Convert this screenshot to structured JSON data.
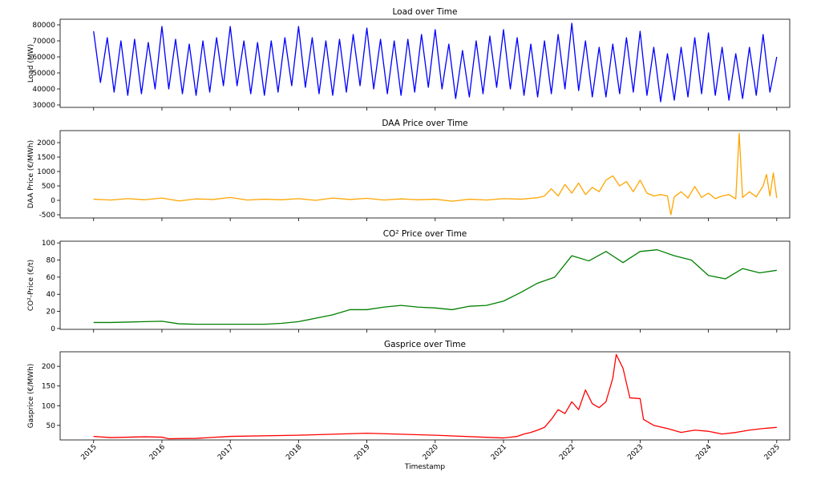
{
  "chart_data": [
    {
      "type": "line",
      "title": "Load over Time",
      "ylabel": "Load (MW)",
      "x": [
        2015,
        2015.1,
        2015.2,
        2015.3,
        2015.4,
        2015.5,
        2015.6,
        2015.7,
        2015.8,
        2015.9,
        2016,
        2016.1,
        2016.2,
        2016.3,
        2016.4,
        2016.5,
        2016.6,
        2016.7,
        2016.8,
        2016.9,
        2017,
        2017.1,
        2017.2,
        2017.3,
        2017.4,
        2017.5,
        2017.6,
        2017.7,
        2017.8,
        2017.9,
        2018,
        2018.1,
        2018.2,
        2018.3,
        2018.4,
        2018.5,
        2018.6,
        2018.7,
        2018.8,
        2018.9,
        2019,
        2019.1,
        2019.2,
        2019.3,
        2019.4,
        2019.5,
        2019.6,
        2019.7,
        2019.8,
        2019.9,
        2020,
        2020.1,
        2020.2,
        2020.3,
        2020.4,
        2020.5,
        2020.6,
        2020.7,
        2020.8,
        2020.9,
        2021,
        2021.1,
        2021.2,
        2021.3,
        2021.4,
        2021.5,
        2021.6,
        2021.7,
        2021.8,
        2021.9,
        2022,
        2022.1,
        2022.2,
        2022.3,
        2022.4,
        2022.5,
        2022.6,
        2022.7,
        2022.8,
        2022.9,
        2023,
        2023.1,
        2023.2,
        2023.3,
        2023.4,
        2023.5,
        2023.6,
        2023.7,
        2023.8,
        2023.9,
        2024,
        2024.1,
        2024.2,
        2024.3,
        2024.4,
        2024.5,
        2024.6,
        2024.7,
        2024.8,
        2024.9,
        2025
      ],
      "series": [
        {
          "color": "#0000ff",
          "values": [
            76000,
            44000,
            72000,
            38000,
            70000,
            36000,
            71000,
            37000,
            69000,
            40000,
            79000,
            40000,
            71000,
            37000,
            68000,
            36000,
            70000,
            38000,
            72000,
            42000,
            79000,
            42000,
            70000,
            37000,
            69000,
            36000,
            70000,
            38000,
            72000,
            42000,
            79000,
            41000,
            72000,
            37000,
            70000,
            36000,
            71000,
            38000,
            74000,
            42000,
            78000,
            40000,
            71000,
            37000,
            70000,
            36000,
            71000,
            38000,
            74000,
            41000,
            77000,
            40000,
            68000,
            34000,
            64000,
            35000,
            70000,
            37000,
            73000,
            41000,
            77000,
            40000,
            72000,
            36000,
            68000,
            35000,
            70000,
            37000,
            74000,
            40000,
            81000,
            39000,
            70000,
            35000,
            66000,
            35000,
            68000,
            37000,
            72000,
            38000,
            76000,
            36000,
            66000,
            32000,
            62000,
            33000,
            66000,
            35000,
            72000,
            37000,
            75000,
            36000,
            66000,
            33000,
            62000,
            34000,
            66000,
            36000,
            74000,
            38000,
            60000
          ]
        }
      ],
      "xlim": [
        2014.51,
        2025.19
      ],
      "xticks": [
        2015,
        2016,
        2017,
        2018,
        2019,
        2020,
        2021,
        2022,
        2023,
        2024,
        2025
      ],
      "ylim": [
        28500,
        83500
      ],
      "yticks": [
        30000,
        40000,
        50000,
        60000,
        70000,
        80000
      ]
    },
    {
      "type": "line",
      "title": "DAA Price over Time",
      "ylabel": "DAA Price (€/MWh)",
      "x": [
        2015,
        2015.25,
        2015.5,
        2015.75,
        2016,
        2016.25,
        2016.5,
        2016.75,
        2017,
        2017.25,
        2017.5,
        2017.75,
        2018,
        2018.25,
        2018.5,
        2018.75,
        2019,
        2019.25,
        2019.5,
        2019.75,
        2020,
        2020.25,
        2020.5,
        2020.75,
        2021,
        2021.25,
        2021.5,
        2021.6,
        2021.7,
        2021.8,
        2021.9,
        2022,
        2022.1,
        2022.2,
        2022.3,
        2022.4,
        2022.5,
        2022.6,
        2022.7,
        2022.8,
        2022.9,
        2023,
        2023.1,
        2023.2,
        2023.3,
        2023.4,
        2023.45,
        2023.5,
        2023.6,
        2023.7,
        2023.8,
        2023.9,
        2024,
        2024.1,
        2024.2,
        2024.3,
        2024.4,
        2024.45,
        2024.5,
        2024.6,
        2024.7,
        2024.8,
        2024.85,
        2024.9,
        2024.95,
        2025
      ],
      "series": [
        {
          "color": "#ffa500",
          "values": [
            40,
            10,
            60,
            20,
            80,
            -20,
            50,
            30,
            100,
            10,
            40,
            20,
            60,
            0,
            80,
            30,
            70,
            10,
            50,
            20,
            40,
            -30,
            40,
            10,
            60,
            40,
            90,
            150,
            400,
            150,
            550,
            250,
            600,
            200,
            450,
            300,
            700,
            850,
            500,
            650,
            300,
            700,
            250,
            150,
            200,
            150,
            -500,
            120,
            300,
            80,
            480,
            100,
            250,
            60,
            150,
            200,
            50,
            2325,
            100,
            300,
            120,
            500,
            900,
            150,
            950,
            80
          ]
        }
      ],
      "xlim": [
        2014.51,
        2025.19
      ],
      "xticks": [
        2015,
        2016,
        2017,
        2018,
        2019,
        2020,
        2021,
        2022,
        2023,
        2024,
        2025
      ],
      "ylim": [
        -611,
        2417
      ],
      "yticks": [
        -500,
        0,
        500,
        1000,
        1500,
        2000
      ]
    },
    {
      "type": "line",
      "title": "CO² Price over Time",
      "ylabel": "CO²-Price (€/t)",
      "x": [
        2015,
        2015.25,
        2015.5,
        2015.75,
        2016,
        2016.25,
        2016.5,
        2016.75,
        2017,
        2017.25,
        2017.5,
        2017.75,
        2018,
        2018.25,
        2018.5,
        2018.75,
        2019,
        2019.25,
        2019.5,
        2019.75,
        2020,
        2020.25,
        2020.5,
        2020.75,
        2021,
        2021.25,
        2021.5,
        2021.75,
        2022,
        2022.25,
        2022.5,
        2022.75,
        2023,
        2023.25,
        2023.5,
        2023.75,
        2024,
        2024.25,
        2024.5,
        2024.75,
        2025
      ],
      "series": [
        {
          "color": "#008000",
          "values": [
            7,
            7,
            7.5,
            8,
            8.5,
            5.5,
            5,
            5,
            5,
            5,
            5,
            6,
            8,
            12,
            16,
            22,
            22,
            25,
            27,
            25,
            24,
            22,
            26,
            27,
            32,
            42,
            53,
            60,
            85,
            79,
            90,
            77,
            90,
            92,
            85,
            80,
            62,
            58,
            70,
            65,
            68
          ]
        }
      ],
      "xlim": [
        2014.51,
        2025.19
      ],
      "xticks": [
        2015,
        2016,
        2017,
        2018,
        2019,
        2020,
        2021,
        2022,
        2023,
        2024,
        2025
      ],
      "ylim": [
        -1,
        102
      ],
      "yticks": [
        0,
        20,
        40,
        60,
        80,
        100
      ]
    },
    {
      "type": "line",
      "title": "Gasprice over Time",
      "ylabel": "Gasprice (€/MWh)",
      "xlabel": "Timestamp",
      "x": [
        2015,
        2015.25,
        2015.5,
        2015.75,
        2016,
        2016.1,
        2016.5,
        2017,
        2018,
        2019,
        2020,
        2021,
        2021.2,
        2021.3,
        2021.4,
        2021.5,
        2021.6,
        2021.7,
        2021.8,
        2021.9,
        2022,
        2022.1,
        2022.2,
        2022.3,
        2022.4,
        2022.5,
        2022.6,
        2022.65,
        2022.75,
        2022.85,
        2023,
        2023.05,
        2023.2,
        2023.4,
        2023.6,
        2023.8,
        2024,
        2024.2,
        2024.4,
        2024.6,
        2024.8,
        2025
      ],
      "series": [
        {
          "color": "#ff0000",
          "values": [
            22,
            19,
            20,
            21,
            20,
            16,
            17,
            22,
            25,
            30,
            25,
            18,
            22,
            28,
            32,
            38,
            45,
            65,
            90,
            80,
            110,
            90,
            140,
            105,
            95,
            110,
            170,
            230,
            195,
            120,
            118,
            65,
            50,
            42,
            32,
            38,
            35,
            28,
            32,
            38,
            42,
            45
          ]
        }
      ],
      "xlim": [
        2014.51,
        2025.19
      ],
      "xticks": [
        2015,
        2016,
        2017,
        2018,
        2019,
        2020,
        2021,
        2022,
        2023,
        2024,
        2025
      ],
      "ylim": [
        13,
        237
      ],
      "yticks": [
        50,
        100,
        150,
        200
      ]
    }
  ]
}
